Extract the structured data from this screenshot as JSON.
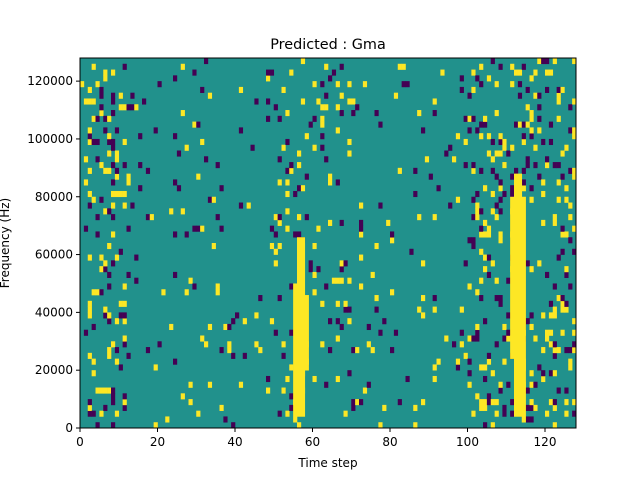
{
  "chart_data": {
    "type": "heatmap",
    "title": "Predicted : Gma",
    "xlabel": "Time step",
    "ylabel": "Frequency (Hz)",
    "xlim": [
      0,
      128
    ],
    "ylim": [
      0,
      128000
    ],
    "x_ticks": [
      0,
      20,
      40,
      60,
      80,
      100,
      120
    ],
    "y_ticks": [
      0,
      20000,
      40000,
      60000,
      80000,
      100000,
      120000
    ],
    "x_tick_labels": [
      "0",
      "20",
      "40",
      "60",
      "80",
      "100",
      "120"
    ],
    "y_tick_labels": [
      "0",
      "20000",
      "40000",
      "60000",
      "80000",
      "100000",
      "120000"
    ],
    "grid": false,
    "n_time_steps": 128,
    "n_frequency_bins": 64,
    "frequency_bin_hz": 2000,
    "colormap": {
      "low": "#440154",
      "mid": "#21918c",
      "high": "#fde725"
    },
    "background_value": "mid",
    "high_bands": [
      {
        "t_start": 55,
        "t_end": 56,
        "f_min": 2000,
        "f_max": 50000
      },
      {
        "t_start": 56,
        "t_end": 58,
        "f_min": 4000,
        "f_max": 66000
      },
      {
        "t_start": 58,
        "t_end": 59,
        "f_min": 20000,
        "f_max": 46000
      },
      {
        "t_start": 111,
        "t_end": 112,
        "f_min": 24000,
        "f_max": 80000
      },
      {
        "t_start": 112,
        "t_end": 114,
        "f_min": 4000,
        "f_max": 88000
      },
      {
        "t_start": 114,
        "t_end": 115,
        "f_min": 2000,
        "f_max": 80000
      }
    ],
    "seed": 7
  }
}
